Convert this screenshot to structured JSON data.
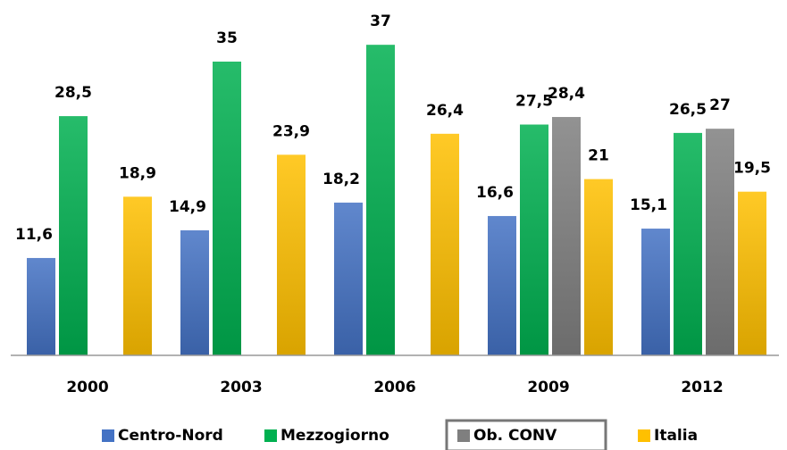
{
  "chart_data": {
    "type": "bar",
    "categories": [
      "2000",
      "2003",
      "2006",
      "2009",
      "2012"
    ],
    "series": [
      {
        "name": "Centro-Nord",
        "color": "#4472c4",
        "values": [
          11.6,
          14.9,
          18.2,
          16.6,
          15.1
        ],
        "value_labels": [
          "11,6",
          "14,9",
          "18,2",
          "16,6",
          "15,1"
        ]
      },
      {
        "name": "Mezzogiorno",
        "color": "#00b050",
        "values": [
          28.5,
          35,
          37,
          27.5,
          26.5
        ],
        "value_labels": [
          "28,5",
          "35",
          "37",
          "27,5",
          "26,5"
        ]
      },
      {
        "name": "Ob. CONV",
        "color": "#7f7f7f",
        "values": [
          null,
          null,
          null,
          28.4,
          27
        ],
        "value_labels": [
          null,
          null,
          null,
          "28,4",
          "27"
        ]
      },
      {
        "name": "Italia",
        "color": "#ffc000",
        "values": [
          18.9,
          23.9,
          26.4,
          21,
          19.5
        ],
        "value_labels": [
          "18,9",
          "23,9",
          "26,4",
          "21",
          "19,5"
        ]
      }
    ],
    "ylim": [
      0,
      40
    ],
    "legend": "bottom"
  }
}
